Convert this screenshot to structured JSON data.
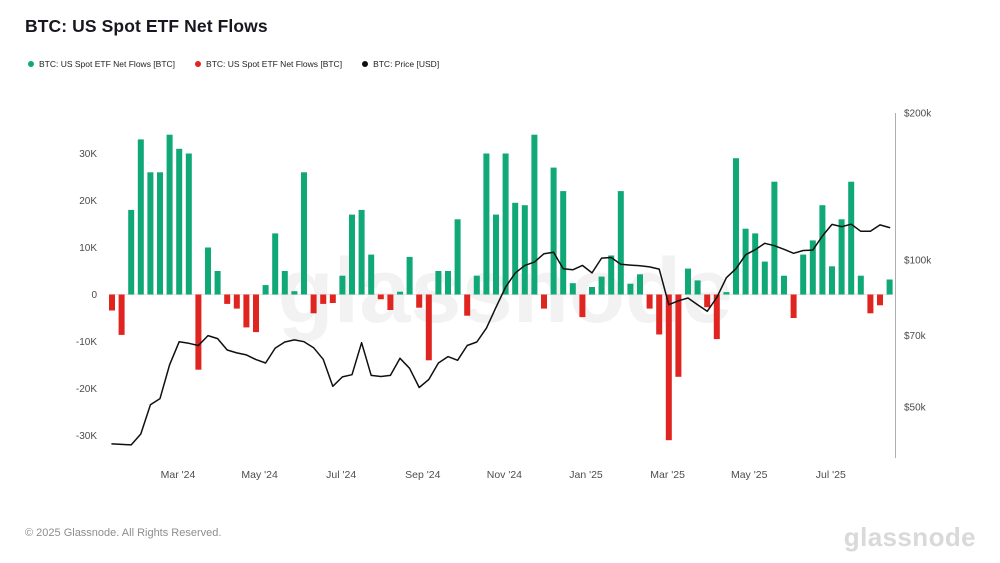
{
  "header": {
    "title": "BTC: US Spot ETF Net Flows"
  },
  "legend": {
    "items": [
      {
        "label": "BTC: US Spot ETF Net Flows [BTC]",
        "color": "#10a877",
        "series": "netflow-positive"
      },
      {
        "label": "BTC: US Spot ETF Net Flows [BTC]",
        "color": "#e02521",
        "series": "netflow-negative"
      },
      {
        "label": "BTC: Price [USD]",
        "color": "#101010",
        "series": "price"
      }
    ]
  },
  "watermarks": {
    "center": "glassnode",
    "corner": "glassnode"
  },
  "footer": {
    "copyright": "© 2025 Glassnode. All Rights Reserved."
  },
  "colors": {
    "bar_positive": "#10a877",
    "bar_negative": "#e02521",
    "price_line": "#101010",
    "zero_line": "#e7e7e7",
    "right_axis_line": "#aeaeae",
    "tick_text": "#4c4c4c"
  },
  "chart_data": {
    "type": "bar",
    "subtype": "weekly bar + log-scale line combo",
    "title": "BTC: US Spot ETF Net Flows",
    "grid": "zero-line only",
    "legend_position": "top-left",
    "x": [
      "2024-01-08",
      "2024-01-15",
      "2024-01-22",
      "2024-01-29",
      "2024-02-05",
      "2024-02-12",
      "2024-02-19",
      "2024-02-26",
      "2024-03-04",
      "2024-03-11",
      "2024-03-18",
      "2024-03-25",
      "2024-04-01",
      "2024-04-08",
      "2024-04-15",
      "2024-04-22",
      "2024-04-29",
      "2024-05-06",
      "2024-05-13",
      "2024-05-20",
      "2024-05-27",
      "2024-06-03",
      "2024-06-10",
      "2024-06-17",
      "2024-06-24",
      "2024-07-01",
      "2024-07-08",
      "2024-07-15",
      "2024-07-22",
      "2024-07-29",
      "2024-08-05",
      "2024-08-12",
      "2024-08-19",
      "2024-08-26",
      "2024-09-02",
      "2024-09-09",
      "2024-09-16",
      "2024-09-23",
      "2024-09-30",
      "2024-10-07",
      "2024-10-14",
      "2024-10-21",
      "2024-10-28",
      "2024-11-04",
      "2024-11-11",
      "2024-11-18",
      "2024-11-25",
      "2024-12-02",
      "2024-12-09",
      "2024-12-16",
      "2024-12-23",
      "2024-12-30",
      "2025-01-06",
      "2025-01-13",
      "2025-01-20",
      "2025-01-27",
      "2025-02-03",
      "2025-02-10",
      "2025-02-17",
      "2025-02-24",
      "2025-03-03",
      "2025-03-10",
      "2025-03-17",
      "2025-03-24",
      "2025-03-31",
      "2025-04-07",
      "2025-04-14",
      "2025-04-21",
      "2025-04-28",
      "2025-05-05",
      "2025-05-12",
      "2025-05-19",
      "2025-05-26",
      "2025-06-02",
      "2025-06-09",
      "2025-06-16",
      "2025-06-23",
      "2025-06-30",
      "2025-07-07",
      "2025-07-14",
      "2025-07-21",
      "2025-07-28"
    ],
    "series": [
      {
        "name": "BTC: US Spot ETF Net Flows [BTC]",
        "type": "bar",
        "axis": "left",
        "unit": "K BTC per week",
        "values": [
          -3.4,
          -8.6,
          18,
          33,
          26,
          26,
          34,
          31,
          30,
          -16,
          10,
          5,
          -2,
          -3,
          -7,
          -8,
          2,
          13,
          5,
          0.7,
          26,
          -4,
          -2,
          -1.8,
          4,
          17,
          18,
          8.5,
          -1,
          -3.3,
          0.6,
          8,
          -2.8,
          -14,
          5,
          5,
          16,
          -4.5,
          4,
          30,
          17,
          30,
          19.5,
          19,
          34,
          -3,
          27,
          22,
          2.4,
          -4.8,
          1.6,
          3.8,
          8.3,
          22,
          2.3,
          4.3,
          -3,
          -8.5,
          -31,
          -17.5,
          5.5,
          3,
          -2.7,
          -9.5,
          0.5,
          29,
          14,
          13,
          7,
          24,
          4,
          -5,
          8.5,
          11.5,
          19,
          6,
          16,
          24,
          4,
          -4,
          -2.3,
          3.2
        ]
      },
      {
        "name": "BTC: Price [USD]",
        "type": "line",
        "axis": "right",
        "unit": "k USD",
        "values": [
          42,
          41.9,
          41.8,
          44,
          50.5,
          52,
          61,
          68,
          67.5,
          66.8,
          70,
          69,
          65.4,
          64.5,
          63.9,
          62.5,
          61.5,
          66,
          67.9,
          68.6,
          68,
          66.1,
          62.6,
          55.1,
          57.6,
          58.2,
          67.7,
          58,
          57.7,
          58,
          62.9,
          60,
          54.8,
          56.9,
          61.5,
          63.4,
          62.3,
          66.8,
          67.9,
          72.5,
          80,
          88,
          94,
          97.5,
          99,
          103,
          103.7,
          96,
          95.5,
          97.5,
          94.1,
          100.9,
          101.2,
          98,
          97.6,
          97.3,
          96.8,
          95.8,
          81,
          82.5,
          83.6,
          81,
          78.5,
          83.8,
          92,
          96,
          102.5,
          105,
          108.2,
          107,
          105.2,
          103.2,
          104.6,
          104.8,
          112,
          118.3,
          117,
          118.4,
          114.5,
          114.5,
          118,
          116.5
        ]
      }
    ],
    "left_axis": {
      "unit": "BTC",
      "scale": "linear",
      "tick_values_k": [
        30,
        20,
        10,
        0,
        -10,
        -20,
        -30
      ],
      "tick_labels": [
        "30K",
        "20K",
        "10K",
        "0",
        "-10K",
        "-20K",
        "-30K"
      ],
      "range_k": [
        -35,
        38
      ]
    },
    "right_axis": {
      "unit": "USD",
      "scale": "log",
      "tick_values_usd_k": [
        200,
        100,
        70,
        50
      ],
      "tick_labels": [
        "$200k",
        "$100k",
        "$70k",
        "$50k"
      ],
      "range_usd_k": [
        40,
        200
      ]
    },
    "x_axis": {
      "tick_labels": [
        "Mar '24",
        "May '24",
        "Jul '24",
        "Sep '24",
        "Nov '24",
        "Jan '25",
        "Mar '25",
        "May '25",
        "Jul '25"
      ]
    }
  }
}
